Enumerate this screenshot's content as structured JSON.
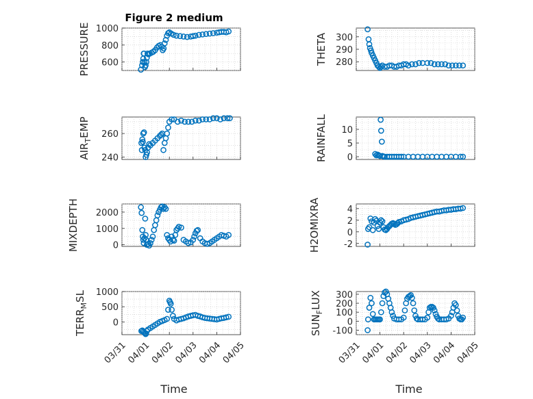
{
  "figure": {
    "title": "Figure 2 medium"
  },
  "xaxis": {
    "label": "Time",
    "range": [
      0,
      5
    ],
    "ticks": [
      0,
      1,
      2,
      3,
      4,
      5
    ],
    "tick_labels": [
      "03/31",
      "04/01",
      "04/02",
      "04/03",
      "04/04",
      "04/05"
    ]
  },
  "colors": {
    "marker": "#0072bd",
    "axis": "#262626",
    "grid": "#c8c8c8"
  },
  "chart_data": [
    {
      "type": "scatter",
      "name": "PRESSURE",
      "ylabel": "PRESSURE",
      "title": "Figure 2 medium",
      "ylim": [
        500,
        1000
      ],
      "yticks": [
        600,
        800,
        1000
      ],
      "x": [
        0.8,
        0.85,
        0.88,
        0.9,
        0.92,
        0.93,
        0.95,
        0.97,
        1.0,
        1.03,
        1.05,
        1.08,
        1.12,
        1.18,
        1.25,
        1.32,
        1.4,
        1.48,
        1.55,
        1.62,
        1.68,
        1.72,
        1.76,
        1.8,
        1.85,
        1.9,
        1.95,
        2.0,
        2.08,
        2.18,
        2.3,
        2.45,
        2.6,
        2.75,
        2.9,
        3.0,
        3.1,
        3.25,
        3.4,
        3.55,
        3.7,
        3.85,
        4.0,
        4.1,
        4.2,
        4.3,
        4.4,
        4.5
      ],
      "y": [
        510,
        560,
        600,
        640,
        700,
        700,
        600,
        540,
        560,
        600,
        650,
        700,
        690,
        700,
        710,
        720,
        740,
        770,
        790,
        800,
        780,
        740,
        760,
        820,
        860,
        910,
        940,
        950,
        935,
        920,
        910,
        905,
        900,
        895,
        900,
        905,
        910,
        920,
        925,
        930,
        935,
        940,
        945,
        950,
        955,
        955,
        950,
        960
      ]
    },
    {
      "type": "scatter",
      "name": "THETA",
      "ylabel": "THETA",
      "ylim": [
        273,
        307
      ],
      "yticks": [
        280,
        290,
        300
      ],
      "x": [
        0.48,
        0.52,
        0.55,
        0.58,
        0.62,
        0.65,
        0.7,
        0.75,
        0.8,
        0.85,
        0.9,
        0.95,
        1.0,
        1.05,
        1.1,
        1.2,
        1.3,
        1.4,
        1.5,
        1.6,
        1.7,
        1.8,
        1.9,
        2.0,
        2.1,
        2.2,
        2.35,
        2.5,
        2.65,
        2.8,
        3.0,
        3.15,
        3.3,
        3.45,
        3.6,
        3.75,
        3.9,
        4.05,
        4.2,
        4.35,
        4.5
      ],
      "y": [
        306,
        298,
        294,
        291,
        289,
        287,
        285,
        283,
        281,
        279,
        277,
        276,
        275,
        276,
        277,
        276,
        276,
        277,
        277,
        276,
        276,
        277,
        277,
        278,
        278,
        277,
        278,
        278,
        279,
        279,
        279,
        279,
        278,
        278,
        278,
        278,
        277,
        277,
        277,
        277,
        277
      ]
    },
    {
      "type": "scatter",
      "name": "AIR_TEMP",
      "ylabel": "AIR_TEMP",
      "ylim": [
        238,
        274
      ],
      "yticks": [
        240,
        260
      ],
      "x": [
        0.82,
        0.84,
        0.86,
        0.88,
        0.9,
        0.93,
        0.95,
        0.98,
        1.0,
        1.03,
        1.06,
        1.1,
        1.15,
        1.2,
        1.3,
        1.4,
        1.5,
        1.6,
        1.65,
        1.7,
        1.75,
        1.8,
        1.85,
        1.9,
        1.95,
        2.0,
        2.1,
        2.2,
        2.35,
        2.5,
        2.65,
        2.8,
        2.95,
        3.1,
        3.25,
        3.4,
        3.55,
        3.7,
        3.85,
        4.0,
        4.15,
        4.3,
        4.45,
        4.55
      ],
      "y": [
        252,
        246,
        255,
        253,
        260,
        261,
        248,
        246,
        240,
        242,
        244,
        248,
        251,
        250,
        252,
        254,
        256,
        258,
        259,
        260,
        246,
        252,
        256,
        260,
        265,
        270,
        272,
        272,
        270,
        271,
        270,
        270,
        270,
        271,
        271,
        272,
        272,
        272,
        273,
        273,
        272,
        273,
        273,
        273
      ]
    },
    {
      "type": "scatter",
      "name": "RAINFALL",
      "ylabel": "RAINFALL",
      "ylim": [
        -1,
        14.5
      ],
      "yticks": [
        0,
        5,
        10
      ],
      "x": [
        0.8,
        0.85,
        0.9,
        0.95,
        1.0,
        1.03,
        1.05,
        1.08,
        1.1,
        1.15,
        1.2,
        1.3,
        1.4,
        1.5,
        1.6,
        1.7,
        1.8,
        1.9,
        2.0,
        2.2,
        2.4,
        2.6,
        2.8,
        3.0,
        3.2,
        3.4,
        3.6,
        3.8,
        4.0,
        4.2,
        4.4,
        4.5
      ],
      "y": [
        1,
        0.5,
        0.8,
        0.5,
        0.3,
        13.5,
        9.5,
        5.5,
        0.3,
        0.1,
        0,
        0,
        0,
        0,
        0,
        0,
        0,
        0,
        0,
        0,
        0,
        0,
        0,
        0,
        0,
        0,
        0,
        0,
        0,
        0,
        0,
        0
      ]
    },
    {
      "type": "scatter",
      "name": "MIXDEPTH",
      "ylabel": "MIXDEPTH",
      "ylim": [
        -100,
        2500
      ],
      "yticks": [
        0,
        1000,
        2000
      ],
      "x": [
        0.8,
        0.83,
        0.86,
        0.88,
        0.9,
        0.92,
        0.95,
        0.98,
        1.0,
        1.02,
        1.05,
        1.1,
        1.15,
        1.2,
        1.25,
        1.3,
        1.35,
        1.4,
        1.45,
        1.5,
        1.55,
        1.6,
        1.65,
        1.7,
        1.75,
        1.8,
        1.85,
        1.9,
        1.95,
        2.0,
        2.05,
        2.1,
        2.15,
        2.2,
        2.25,
        2.3,
        2.35,
        2.4,
        2.5,
        2.6,
        2.7,
        2.8,
        2.9,
        3.0,
        3.05,
        3.1,
        3.15,
        3.2,
        3.3,
        3.4,
        3.5,
        3.6,
        3.7,
        3.8,
        3.9,
        4.0,
        4.1,
        4.2,
        4.3,
        4.4,
        4.5
      ],
      "y": [
        2300,
        1950,
        900,
        500,
        300,
        100,
        400,
        1600,
        600,
        300,
        0,
        50,
        -50,
        100,
        300,
        500,
        900,
        1200,
        1500,
        1800,
        2000,
        2150,
        2300,
        2350,
        2200,
        2300,
        2200,
        600,
        400,
        300,
        200,
        500,
        300,
        250,
        600,
        900,
        1000,
        1100,
        1050,
        300,
        200,
        100,
        150,
        300,
        500,
        700,
        850,
        900,
        400,
        200,
        100,
        50,
        100,
        200,
        300,
        400,
        500,
        600,
        550,
        500,
        600
      ]
    },
    {
      "type": "scatter",
      "name": "H2OMIXRA",
      "ylabel": "H2OMIXRA",
      "ylim": [
        -2.5,
        4.8
      ],
      "yticks": [
        -2,
        0,
        2,
        4
      ],
      "x": [
        0.48,
        0.5,
        0.55,
        0.6,
        0.65,
        0.7,
        0.75,
        0.8,
        0.85,
        0.9,
        0.95,
        1.0,
        1.05,
        1.1,
        1.15,
        1.2,
        1.25,
        1.3,
        1.35,
        1.4,
        1.45,
        1.5,
        1.55,
        1.6,
        1.65,
        1.7,
        1.75,
        1.8,
        1.9,
        2.0,
        2.1,
        2.2,
        2.3,
        2.4,
        2.5,
        2.6,
        2.7,
        2.8,
        2.9,
        3.0,
        3.1,
        3.2,
        3.3,
        3.4,
        3.5,
        3.6,
        3.7,
        3.8,
        3.9,
        4.0,
        4.1,
        4.2,
        4.3,
        4.4,
        4.5
      ],
      "y": [
        -2.2,
        0.5,
        0.8,
        2.3,
        1.8,
        0.3,
        1.6,
        2.2,
        1.9,
        1.0,
        0.5,
        1.6,
        2.0,
        1.8,
        0.8,
        0.4,
        0.3,
        0.5,
        0.8,
        1.0,
        1.2,
        1.4,
        1.5,
        1.4,
        1.2,
        1.3,
        1.5,
        1.7,
        1.8,
        2.0,
        2.1,
        2.2,
        2.4,
        2.5,
        2.6,
        2.7,
        2.8,
        2.9,
        3.0,
        3.1,
        3.2,
        3.3,
        3.4,
        3.5,
        3.5,
        3.6,
        3.7,
        3.7,
        3.8,
        3.8,
        3.9,
        3.9,
        4.0,
        4.0,
        4.1
      ]
    },
    {
      "type": "scatter",
      "name": "TERR_MSL",
      "ylabel": "TERR_MSL",
      "ylim": [
        -420,
        1000
      ],
      "yticks": [
        0,
        500,
        1000
      ],
      "x": [
        0.82,
        0.86,
        0.9,
        0.94,
        0.98,
        1.0,
        1.02,
        1.05,
        1.1,
        1.2,
        1.3,
        1.4,
        1.5,
        1.6,
        1.7,
        1.8,
        1.9,
        1.95,
        2.0,
        2.03,
        2.06,
        2.1,
        2.15,
        2.2,
        2.3,
        2.4,
        2.5,
        2.6,
        2.7,
        2.8,
        2.9,
        3.0,
        3.1,
        3.2,
        3.3,
        3.4,
        3.5,
        3.6,
        3.7,
        3.8,
        3.9,
        4.0,
        4.1,
        4.2,
        4.3,
        4.4,
        4.5
      ],
      "y": [
        -300,
        -280,
        -320,
        -350,
        -380,
        -400,
        -380,
        -300,
        -250,
        -200,
        -150,
        -100,
        -50,
        0,
        30,
        60,
        100,
        400,
        700,
        650,
        600,
        400,
        200,
        100,
        50,
        80,
        100,
        120,
        150,
        180,
        200,
        220,
        230,
        200,
        180,
        150,
        130,
        120,
        110,
        100,
        90,
        80,
        100,
        120,
        130,
        150,
        170
      ]
    },
    {
      "type": "scatter",
      "name": "SUN_FLUX",
      "ylabel": "SUN_FLUX",
      "ylim": [
        -150,
        330
      ],
      "yticks": [
        -100,
        0,
        100,
        200,
        300
      ],
      "x": [
        0.48,
        0.5,
        0.55,
        0.6,
        0.65,
        0.7,
        0.75,
        0.8,
        0.85,
        0.9,
        0.95,
        1.0,
        1.05,
        1.1,
        1.15,
        1.2,
        1.25,
        1.3,
        1.35,
        1.4,
        1.45,
        1.5,
        1.55,
        1.6,
        1.7,
        1.8,
        1.9,
        2.0,
        2.05,
        2.1,
        2.15,
        2.2,
        2.25,
        2.3,
        2.35,
        2.4,
        2.45,
        2.5,
        2.55,
        2.6,
        2.7,
        2.8,
        2.9,
        3.0,
        3.05,
        3.1,
        3.15,
        3.2,
        3.25,
        3.3,
        3.35,
        3.4,
        3.45,
        3.5,
        3.6,
        3.7,
        3.8,
        3.9,
        4.0,
        4.05,
        4.1,
        4.15,
        4.2,
        4.25,
        4.3,
        4.35,
        4.4,
        4.45,
        4.5
      ],
      "y": [
        -100,
        20,
        150,
        260,
        200,
        80,
        20,
        20,
        20,
        20,
        20,
        20,
        100,
        200,
        280,
        320,
        330,
        300,
        250,
        200,
        150,
        100,
        60,
        30,
        20,
        20,
        20,
        40,
        120,
        200,
        250,
        270,
        280,
        290,
        260,
        200,
        120,
        60,
        30,
        20,
        20,
        20,
        20,
        40,
        100,
        150,
        160,
        160,
        150,
        120,
        80,
        50,
        30,
        20,
        20,
        20,
        20,
        30,
        60,
        100,
        150,
        200,
        180,
        120,
        60,
        30,
        20,
        20,
        40
      ]
    }
  ]
}
